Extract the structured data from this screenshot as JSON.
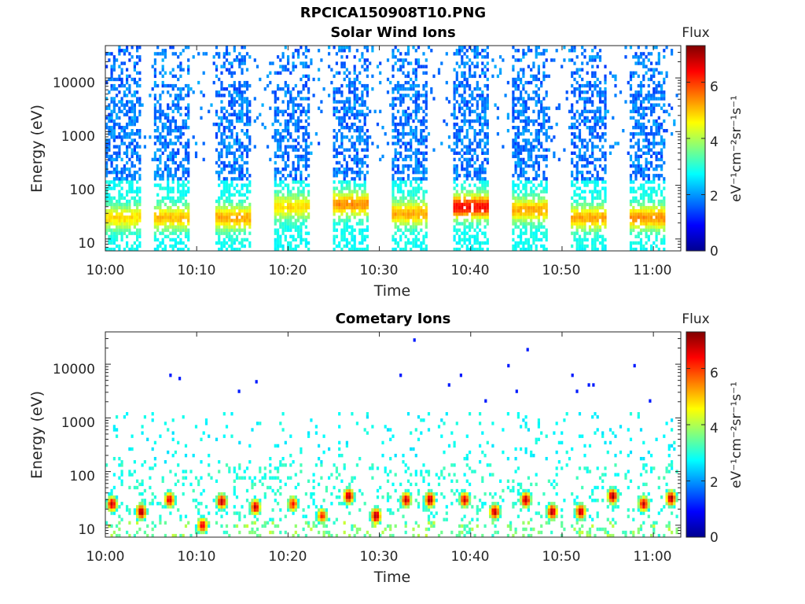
{
  "figure_title": "RPCICA150908T10.PNG",
  "colorbar_colors": [
    "#00008f",
    "#0000ff",
    "#0080ff",
    "#00ffff",
    "#80ff80",
    "#ffff00",
    "#ff8000",
    "#ff0000",
    "#800000"
  ],
  "chart_data": [
    {
      "type": "heatmap",
      "title": "Solar Wind Ions",
      "xlabel": "Time",
      "ylabel": "Energy (eV)",
      "x_range": [
        "10:00",
        "11:03"
      ],
      "x_ticks": [
        "10:00",
        "10:10",
        "10:20",
        "10:30",
        "10:40",
        "10:50",
        "11:00"
      ],
      "y_scale": "log",
      "y_range": [
        6,
        40000
      ],
      "y_ticks": [
        "10",
        "100",
        "1000",
        "10000"
      ],
      "colorbar": {
        "title": "Flux",
        "label": "eV⁻¹cm⁻²sr⁻¹s⁻¹",
        "range": [
          0,
          7.3
        ],
        "ticks": [
          "0",
          "2",
          "4",
          "6"
        ]
      },
      "scan_starts_minutes": [
        0.0,
        5.3,
        11.9,
        18.4,
        24.8,
        31.3,
        37.9,
        44.4,
        50.8,
        57.3
      ],
      "peak_energy_eV": [
        25,
        25,
        25,
        40,
        45,
        30,
        40,
        35,
        25,
        25
      ],
      "peak_flux": [
        4.6,
        4.8,
        5.0,
        4.6,
        5.2,
        5.0,
        6.2,
        5.0,
        5.0,
        5.2
      ]
    },
    {
      "type": "heatmap",
      "title": "Cometary Ions",
      "xlabel": "Time",
      "ylabel": "Energy (eV)",
      "x_range": [
        "10:00",
        "11:03"
      ],
      "x_ticks": [
        "10:00",
        "10:10",
        "10:20",
        "10:30",
        "10:40",
        "10:50",
        "11:00"
      ],
      "y_scale": "log",
      "y_range": [
        6,
        40000
      ],
      "y_ticks": [
        "10",
        "100",
        "1000",
        "10000"
      ],
      "colorbar": {
        "title": "Flux",
        "label": "eV⁻¹cm⁻²sr⁻¹s⁻¹",
        "range": [
          0,
          7.3
        ],
        "ticks": [
          "0",
          "2",
          "4",
          "6"
        ]
      },
      "bursts": [
        {
          "t": 0.6,
          "e": 25,
          "f": 6.8
        },
        {
          "t": 3.8,
          "e": 18,
          "f": 7.0
        },
        {
          "t": 6.9,
          "e": 30,
          "f": 6.6
        },
        {
          "t": 10.5,
          "e": 10,
          "f": 6.5
        },
        {
          "t": 12.6,
          "e": 28,
          "f": 6.8
        },
        {
          "t": 16.3,
          "e": 22,
          "f": 6.8
        },
        {
          "t": 20.4,
          "e": 25,
          "f": 6.2
        },
        {
          "t": 23.6,
          "e": 15,
          "f": 6.0
        },
        {
          "t": 26.5,
          "e": 35,
          "f": 6.9
        },
        {
          "t": 29.5,
          "e": 15,
          "f": 7.0
        },
        {
          "t": 32.8,
          "e": 30,
          "f": 6.7
        },
        {
          "t": 35.4,
          "e": 30,
          "f": 7.0
        },
        {
          "t": 39.2,
          "e": 30,
          "f": 6.6
        },
        {
          "t": 42.5,
          "e": 18,
          "f": 6.8
        },
        {
          "t": 45.9,
          "e": 30,
          "f": 6.9
        },
        {
          "t": 48.8,
          "e": 18,
          "f": 7.0
        },
        {
          "t": 51.9,
          "e": 18,
          "f": 6.8
        },
        {
          "t": 55.4,
          "e": 35,
          "f": 7.0
        },
        {
          "t": 58.8,
          "e": 25,
          "f": 6.7
        },
        {
          "t": 61.8,
          "e": 32,
          "f": 6.9
        }
      ],
      "isolated_high_energy_eV": [
        6500,
        5400,
        3000,
        4500,
        30000,
        6500,
        4000,
        2000,
        6500,
        3000,
        10000,
        19000,
        3000,
        4000,
        6500,
        4000,
        10000,
        2000
      ]
    }
  ]
}
